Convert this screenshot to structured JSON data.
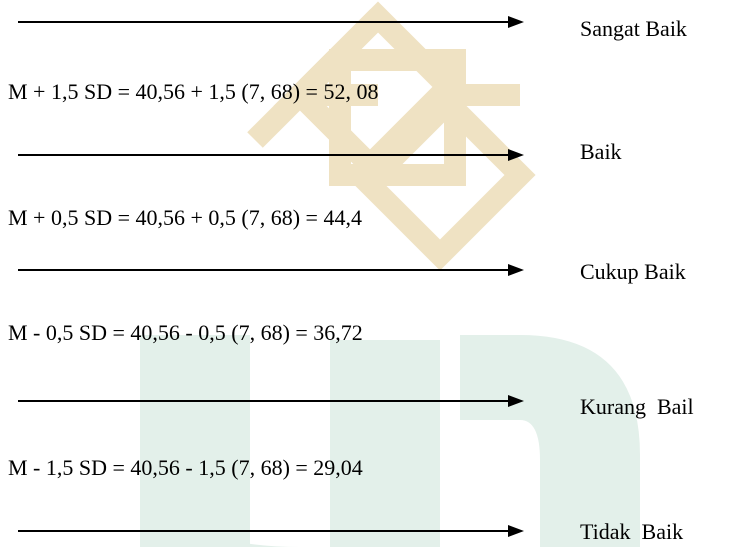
{
  "categories": [
    {
      "label": "Sangat Baik"
    },
    {
      "label": "Baik"
    },
    {
      "label": "Cukup Baik"
    },
    {
      "label": "Kurang  Bail"
    },
    {
      "label": "Tidak  Baik"
    }
  ],
  "formulas": [
    {
      "text": "M + 1,5 SD = 40,56 + 1,5 (7, 68) = 52, 08"
    },
    {
      "text": "M + 0,5 SD = 40,56 + 0,5 (7, 68) = 44,4"
    },
    {
      "text": "M - 0,5 SD = 40,56 - 0,5 (7, 68)  = 36,72"
    },
    {
      "text": "M - 1,5 SD = 40,56 - 1,5 (7, 68) = 29,04"
    }
  ],
  "colors": {
    "text": "#000000",
    "watermark_gold": "#e9d9b3",
    "watermark_green": "#d3e9df"
  }
}
